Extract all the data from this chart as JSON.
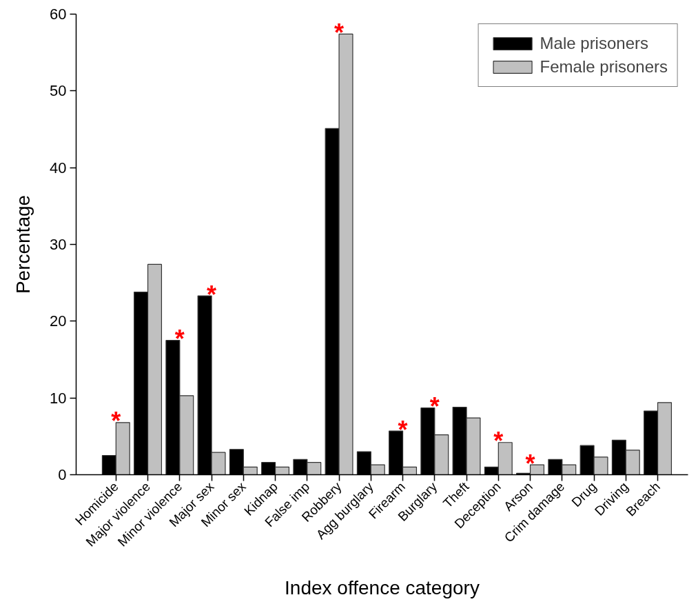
{
  "chart_data": {
    "type": "bar",
    "xlabel": "Index offence category",
    "ylabel": "Percentage",
    "categories": [
      "Homicide",
      "Major violence",
      "Minor violence",
      "Major sex",
      "Minor sex",
      "Kidnap",
      "False imp",
      "Robbery",
      "Agg burglary",
      "Firearm",
      "Burglary",
      "Theft",
      "Deception",
      "Arson",
      "Crim damage",
      "Drug",
      "Driving",
      "Breach"
    ],
    "series": [
      {
        "name": "Male prisoners",
        "color": "#000000",
        "values": [
          2.5,
          23.8,
          17.5,
          23.3,
          3.3,
          1.6,
          2.0,
          45.1,
          3.0,
          5.7,
          8.7,
          8.8,
          1.0,
          0.2,
          2.0,
          3.8,
          4.5,
          8.3
        ]
      },
      {
        "name": "Female prisoners",
        "color": "#c0c0c0",
        "values": [
          6.8,
          27.4,
          10.3,
          2.9,
          1.0,
          1.0,
          1.6,
          57.4,
          1.3,
          1.0,
          5.2,
          7.4,
          4.2,
          1.3,
          1.3,
          2.3,
          3.2,
          9.4
        ]
      }
    ],
    "ylim": [
      0,
      60
    ],
    "yticks": [
      0,
      10,
      20,
      30,
      40,
      50,
      60
    ],
    "grid": false,
    "legend": "top right",
    "annotations": [
      {
        "text": "*",
        "x": "Homicide",
        "y": 6.8
      },
      {
        "text": "*",
        "x": "Minor violence",
        "y": 17.5
      },
      {
        "text": "*",
        "x": "Major sex",
        "y": 23.3
      },
      {
        "text": "*",
        "x": "Robbery",
        "y": 57.4
      },
      {
        "text": "*",
        "x": "Firearm",
        "y": 5.7
      },
      {
        "text": "*",
        "x": "Burglary",
        "y": 8.7
      },
      {
        "text": "*",
        "x": "Deception",
        "y": 4.2
      },
      {
        "text": "*",
        "x": "Arson",
        "y": 1.3
      }
    ]
  }
}
